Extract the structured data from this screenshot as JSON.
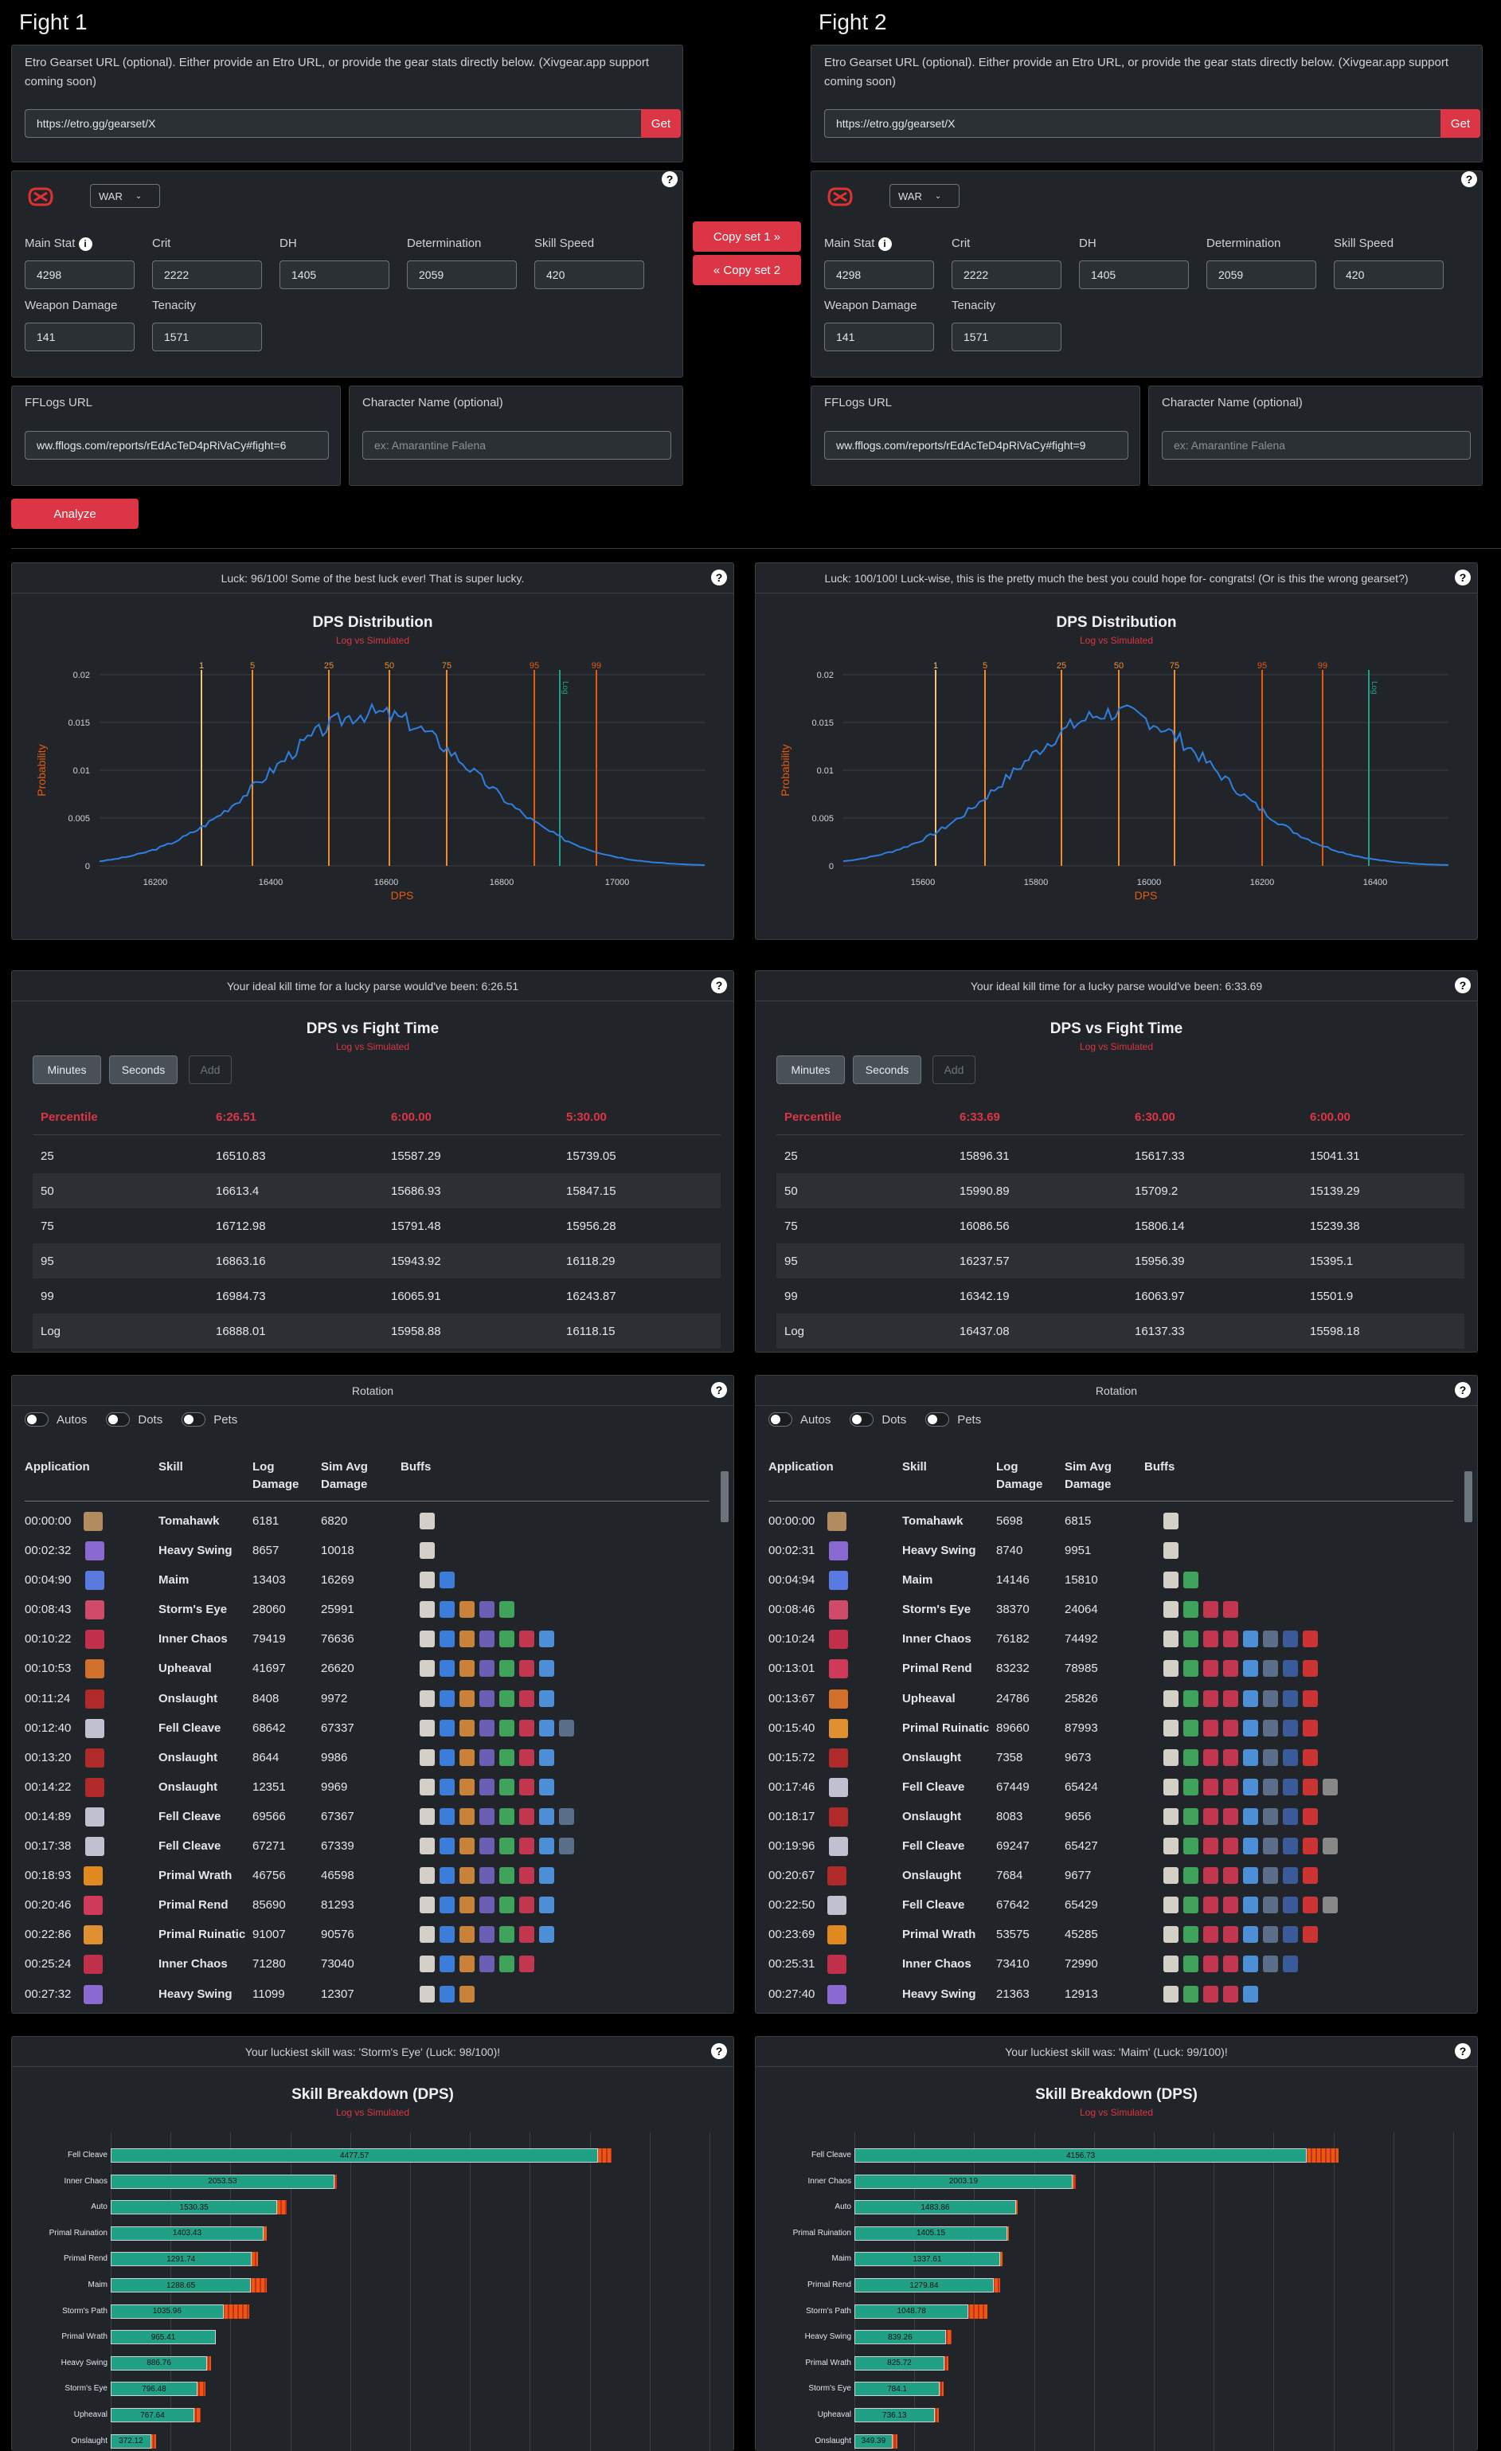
{
  "fights": [
    {
      "title": "Fight 1",
      "etro_desc": "Etro Gearset URL (optional). Either provide an Etro URL, or provide the gear stats directly below. (Xivgear.app support coming soon)",
      "etro_url": "https://etro.gg/gearset/X",
      "get_label": "Get",
      "job": "WAR",
      "stats": [
        {
          "label": "Main Stat",
          "value": "4298"
        },
        {
          "label": "Crit",
          "value": "2222"
        },
        {
          "label": "DH",
          "value": "1405"
        },
        {
          "label": "Determination",
          "value": "2059"
        },
        {
          "label": "Skill Speed",
          "value": "420"
        },
        {
          "label": "Weapon Damage",
          "value": "141"
        },
        {
          "label": "Tenacity",
          "value": "1571"
        }
      ],
      "fflogs_label": "FFLogs URL",
      "fflogs_value": "ww.fflogs.com/reports/rEdAcTeD4pRiVaCy#fight=6",
      "char_label": "Character Name (optional)",
      "char_placeholder": "ex: Amarantine Falena",
      "luck_text": "Luck: 96/100! Some of the best luck ever! That is super lucky.",
      "dist": {
        "title": "DPS Distribution",
        "subtitle": "Log vs Simulated",
        "xlabel": "DPS",
        "ylabel": "Probability",
        "xticks": [
          "16200",
          "16400",
          "16600",
          "16800",
          "17000"
        ],
        "yticks": [
          "0.02",
          "0.015",
          "0.01",
          "0.005",
          "0"
        ],
        "percentiles": [
          "1",
          "5",
          "25",
          "50",
          "75",
          "95",
          "99"
        ],
        "log_label": "Log"
      },
      "ideal_text": "Your ideal kill time for a lucky parse would've been: 6:26.51",
      "fight_time": {
        "title": "DPS vs Fight Time",
        "subtitle": "Log vs Simulated",
        "buttons": [
          "Minutes",
          "Seconds",
          "Add"
        ],
        "header": [
          "Percentile",
          "6:26.51",
          "6:00.00",
          "5:30.00"
        ],
        "rows": [
          [
            "25",
            "16510.83",
            "15587.29",
            "15739.05"
          ],
          [
            "50",
            "16613.4",
            "15686.93",
            "15847.15"
          ],
          [
            "75",
            "16712.98",
            "15791.48",
            "15956.28"
          ],
          [
            "95",
            "16863.16",
            "15943.92",
            "16118.29"
          ],
          [
            "99",
            "16984.73",
            "16065.91",
            "16243.87"
          ],
          [
            "Log",
            "16888.01",
            "15958.88",
            "16118.15"
          ]
        ]
      },
      "rotation": {
        "title": "Rotation",
        "toggles": [
          "Autos",
          "Dots",
          "Pets"
        ],
        "headers": [
          "Application",
          "Skill",
          "Log Damage",
          "Sim Avg Damage",
          "Buffs"
        ],
        "rows": [
          {
            "t": "00:00:00",
            "skill": "Tomahawk",
            "log": "6181",
            "sim": "6820",
            "buffs": 1
          },
          {
            "t": "00:02:32",
            "skill": "Heavy Swing",
            "log": "8657",
            "sim": "10018",
            "buffs": 1
          },
          {
            "t": "00:04:90",
            "skill": "Maim",
            "log": "13403",
            "sim": "16269",
            "buffs": 2
          },
          {
            "t": "00:08:43",
            "skill": "Storm's Eye",
            "log": "28060",
            "sim": "25991",
            "buffs": 5
          },
          {
            "t": "00:10:22",
            "skill": "Inner Chaos",
            "log": "79419",
            "sim": "76636",
            "buffs": 7
          },
          {
            "t": "00:10:53",
            "skill": "Upheaval",
            "log": "41697",
            "sim": "26620",
            "buffs": 7
          },
          {
            "t": "00:11:24",
            "skill": "Onslaught",
            "log": "8408",
            "sim": "9972",
            "buffs": 7
          },
          {
            "t": "00:12:40",
            "skill": "Fell Cleave",
            "log": "68642",
            "sim": "67337",
            "buffs": 8
          },
          {
            "t": "00:13:20",
            "skill": "Onslaught",
            "log": "8644",
            "sim": "9986",
            "buffs": 7
          },
          {
            "t": "00:14:22",
            "skill": "Onslaught",
            "log": "12351",
            "sim": "9969",
            "buffs": 7
          },
          {
            "t": "00:14:89",
            "skill": "Fell Cleave",
            "log": "69566",
            "sim": "67367",
            "buffs": 8
          },
          {
            "t": "00:17:38",
            "skill": "Fell Cleave",
            "log": "67271",
            "sim": "67339",
            "buffs": 8
          },
          {
            "t": "00:18:93",
            "skill": "Primal Wrath",
            "log": "46756",
            "sim": "46598",
            "buffs": 7
          },
          {
            "t": "00:20:46",
            "skill": "Primal Rend",
            "log": "85690",
            "sim": "81293",
            "buffs": 7
          },
          {
            "t": "00:22:86",
            "skill": "Primal Ruinatic",
            "log": "91007",
            "sim": "90576",
            "buffs": 7
          },
          {
            "t": "00:25:24",
            "skill": "Inner Chaos",
            "log": "71280",
            "sim": "73040",
            "buffs": 6
          },
          {
            "t": "00:27:32",
            "skill": "Heavy Swing",
            "log": "11099",
            "sim": "12307",
            "buffs": 3
          }
        ]
      },
      "luckiest_text": "Your luckiest skill was: 'Storm's Eye' (Luck: 98/100)!",
      "breakdown": {
        "title": "Skill Breakdown (DPS)",
        "subtitle": "Log vs Simulated",
        "bars": [
          {
            "label": "Fell Cleave",
            "value": "4477.57",
            "v": 4477.57,
            "sim": 4600
          },
          {
            "label": "Inner Chaos",
            "value": "2053.53",
            "v": 2053.53,
            "sim": 2080
          },
          {
            "label": "Auto",
            "value": "1530.35",
            "v": 1530.35,
            "sim": 1620
          },
          {
            "label": "Primal Ruination",
            "value": "1403.43",
            "v": 1403.43,
            "sim": 1430
          },
          {
            "label": "Primal Rend",
            "value": "1291.74",
            "v": 1291.74,
            "sim": 1350
          },
          {
            "label": "Maim",
            "value": "1288.65",
            "v": 1288.65,
            "sim": 1430
          },
          {
            "label": "Storm's Path",
            "value": "1035.96",
            "v": 1035.96,
            "sim": 1270
          },
          {
            "label": "Primal Wrath",
            "value": "965.41",
            "v": 965.41,
            "sim": 930
          },
          {
            "label": "Heavy Swing",
            "value": "886.76",
            "v": 886.76,
            "sim": 910
          },
          {
            "label": "Storm's Eye",
            "value": "796.48",
            "v": 796.48,
            "sim": 870
          },
          {
            "label": "Upheaval",
            "value": "767.64",
            "v": 767.64,
            "sim": 830
          },
          {
            "label": "Onslaught",
            "value": "372.12",
            "v": 372.12,
            "sim": 380
          }
        ]
      }
    },
    {
      "title": "Fight 2",
      "etro_desc": "Etro Gearset URL (optional). Either provide an Etro URL, or provide the gear stats directly below. (Xivgear.app support coming soon)",
      "etro_url": "https://etro.gg/gearset/X",
      "get_label": "Get",
      "job": "WAR",
      "stats": [
        {
          "label": "Main Stat",
          "value": "4298"
        },
        {
          "label": "Crit",
          "value": "2222"
        },
        {
          "label": "DH",
          "value": "1405"
        },
        {
          "label": "Determination",
          "value": "2059"
        },
        {
          "label": "Skill Speed",
          "value": "420"
        },
        {
          "label": "Weapon Damage",
          "value": "141"
        },
        {
          "label": "Tenacity",
          "value": "1571"
        }
      ],
      "fflogs_label": "FFLogs URL",
      "fflogs_value": "ww.fflogs.com/reports/rEdAcTeD4pRiVaCy#fight=9",
      "char_label": "Character Name (optional)",
      "char_placeholder": "ex: Amarantine Falena",
      "luck_text": "Luck: 100/100! Luck-wise, this is the pretty much the best you could hope for- congrats! (Or is this the wrong gearset?)",
      "dist": {
        "title": "DPS Distribution",
        "subtitle": "Log vs Simulated",
        "xlabel": "DPS",
        "ylabel": "Probability",
        "xticks": [
          "15600",
          "15800",
          "16000",
          "16200",
          "16400"
        ],
        "yticks": [
          "0.02",
          "0.015",
          "0.01",
          "0.005",
          "0"
        ],
        "percentiles": [
          "1",
          "5",
          "25",
          "50",
          "75",
          "95",
          "99"
        ],
        "log_label": "Log"
      },
      "ideal_text": "Your ideal kill time for a lucky parse would've been: 6:33.69",
      "fight_time": {
        "title": "DPS vs Fight Time",
        "subtitle": "Log vs Simulated",
        "buttons": [
          "Minutes",
          "Seconds",
          "Add"
        ],
        "header": [
          "Percentile",
          "6:33.69",
          "6:30.00",
          "6:00.00"
        ],
        "rows": [
          [
            "25",
            "15896.31",
            "15617.33",
            "15041.31"
          ],
          [
            "50",
            "15990.89",
            "15709.2",
            "15139.29"
          ],
          [
            "75",
            "16086.56",
            "15806.14",
            "15239.38"
          ],
          [
            "95",
            "16237.57",
            "15956.39",
            "15395.1"
          ],
          [
            "99",
            "16342.19",
            "16063.97",
            "15501.9"
          ],
          [
            "Log",
            "16437.08",
            "16137.33",
            "15598.18"
          ]
        ]
      },
      "rotation": {
        "title": "Rotation",
        "toggles": [
          "Autos",
          "Dots",
          "Pets"
        ],
        "headers": [
          "Application",
          "Skill",
          "Log Damage",
          "Sim Avg Damage",
          "Buffs"
        ],
        "rows": [
          {
            "t": "00:00:00",
            "skill": "Tomahawk",
            "log": "5698",
            "sim": "6815",
            "buffs": 1
          },
          {
            "t": "00:02:31",
            "skill": "Heavy Swing",
            "log": "8740",
            "sim": "9951",
            "buffs": 1
          },
          {
            "t": "00:04:94",
            "skill": "Maim",
            "log": "14146",
            "sim": "15810",
            "buffs": 2
          },
          {
            "t": "00:08:46",
            "skill": "Storm's Eye",
            "log": "38370",
            "sim": "24064",
            "buffs": 4
          },
          {
            "t": "00:10:24",
            "skill": "Inner Chaos",
            "log": "76182",
            "sim": "74492",
            "buffs": 8
          },
          {
            "t": "00:13:01",
            "skill": "Primal Rend",
            "log": "83232",
            "sim": "78985",
            "buffs": 8
          },
          {
            "t": "00:13:67",
            "skill": "Upheaval",
            "log": "24786",
            "sim": "25826",
            "buffs": 8
          },
          {
            "t": "00:15:40",
            "skill": "Primal Ruinatic",
            "log": "89660",
            "sim": "87993",
            "buffs": 8
          },
          {
            "t": "00:15:72",
            "skill": "Onslaught",
            "log": "7358",
            "sim": "9673",
            "buffs": 8
          },
          {
            "t": "00:17:46",
            "skill": "Fell Cleave",
            "log": "67449",
            "sim": "65424",
            "buffs": 9
          },
          {
            "t": "00:18:17",
            "skill": "Onslaught",
            "log": "8083",
            "sim": "9656",
            "buffs": 8
          },
          {
            "t": "00:19:96",
            "skill": "Fell Cleave",
            "log": "69247",
            "sim": "65427",
            "buffs": 9
          },
          {
            "t": "00:20:67",
            "skill": "Onslaught",
            "log": "7684",
            "sim": "9677",
            "buffs": 8
          },
          {
            "t": "00:22:50",
            "skill": "Fell Cleave",
            "log": "67642",
            "sim": "65429",
            "buffs": 9
          },
          {
            "t": "00:23:69",
            "skill": "Primal Wrath",
            "log": "53575",
            "sim": "45285",
            "buffs": 8
          },
          {
            "t": "00:25:31",
            "skill": "Inner Chaos",
            "log": "73410",
            "sim": "72990",
            "buffs": 7
          },
          {
            "t": "00:27:40",
            "skill": "Heavy Swing",
            "log": "21363",
            "sim": "12913",
            "buffs": 5
          }
        ]
      },
      "luckiest_text": "Your luckiest skill was: 'Maim' (Luck: 99/100)!",
      "breakdown": {
        "title": "Skill Breakdown (DPS)",
        "subtitle": "Log vs Simulated",
        "bars": [
          {
            "label": "Fell Cleave",
            "value": "4156.73",
            "v": 4156.73,
            "sim": 4450
          },
          {
            "label": "Inner Chaos",
            "value": "2003.19",
            "v": 2003.19,
            "sim": 2030
          },
          {
            "label": "Auto",
            "value": "1483.86",
            "v": 1483.86,
            "sim": 1490
          },
          {
            "label": "Primal Ruination",
            "value": "1405.15",
            "v": 1405.15,
            "sim": 1410
          },
          {
            "label": "Maim",
            "value": "1337.61",
            "v": 1337.61,
            "sim": 1360
          },
          {
            "label": "Primal Rend",
            "value": "1279.84",
            "v": 1279.84,
            "sim": 1340
          },
          {
            "label": "Storm's Path",
            "value": "1048.78",
            "v": 1048.78,
            "sim": 1220
          },
          {
            "label": "Heavy Swing",
            "value": "839.26",
            "v": 839.26,
            "sim": 890
          },
          {
            "label": "Primal Wrath",
            "value": "825.72",
            "v": 825.72,
            "sim": 860
          },
          {
            "label": "Storm's Eye",
            "value": "784.1",
            "v": 784.1,
            "sim": 810
          },
          {
            "label": "Upheaval",
            "value": "736.13",
            "v": 736.13,
            "sim": 770
          },
          {
            "label": "Onslaught",
            "value": "349.39",
            "v": 349.39,
            "sim": 360
          }
        ]
      }
    }
  ],
  "copy_set1": "Copy set 1",
  "copy_set2": "Copy set 2",
  "analyze_label": "Analyze",
  "colors": {
    "accent": "#dc3545",
    "panel": "#212529",
    "series": "#2f7fe0",
    "percentile_light": "#f5c27a",
    "percentile_mid": "#f08c2a",
    "percentile_dark": "#e8590c",
    "log_line": "#20a085"
  }
}
